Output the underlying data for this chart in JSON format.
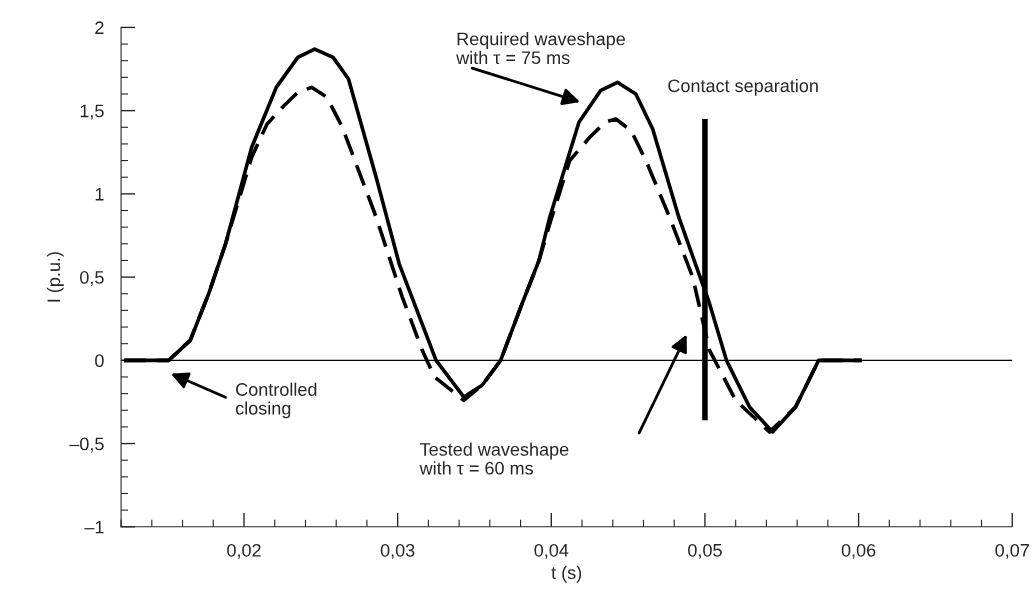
{
  "chart_data": {
    "type": "line",
    "xlabel": "t (s)",
    "ylabel": "I (p.u.)",
    "xlim": [
      0.012,
      0.07
    ],
    "ylim": [
      -1,
      2
    ],
    "xticks": [
      {
        "value": 0.02,
        "label": "0,02"
      },
      {
        "value": 0.03,
        "label": "0,03"
      },
      {
        "value": 0.04,
        "label": "0,04"
      },
      {
        "value": 0.05,
        "label": "0,05"
      },
      {
        "value": 0.06,
        "label": "0,06"
      },
      {
        "value": 0.07,
        "label": "0,07"
      }
    ],
    "yticks": [
      {
        "value": -1,
        "label": "–1"
      },
      {
        "value": -0.5,
        "label": "–0,5"
      },
      {
        "value": 0,
        "label": "0"
      },
      {
        "value": 0.5,
        "label": "0,5"
      },
      {
        "value": 1,
        "label": "1"
      },
      {
        "value": 1.5,
        "label": "1,5"
      },
      {
        "value": 2,
        "label": "2"
      }
    ],
    "grid": false,
    "legend": false,
    "series": [
      {
        "color": "#000000",
        "line_style": "solid",
        "x": [
          0.0122,
          0.0151,
          0.0165,
          0.0177,
          0.0188,
          0.0205,
          0.0221,
          0.0235,
          0.0246,
          0.0258,
          0.0268,
          0.0286,
          0.0301,
          0.0325,
          0.0343,
          0.0355,
          0.0367,
          0.0381,
          0.0392,
          0.0399,
          0.0418,
          0.0432,
          0.0443,
          0.0455,
          0.0466,
          0.0483,
          0.0503,
          0.0514,
          0.0529,
          0.0544,
          0.0559,
          0.0574,
          0.0602
        ],
        "values": [
          0,
          0,
          0.12,
          0.4,
          0.7,
          1.28,
          1.64,
          1.82,
          1.87,
          1.82,
          1.69,
          1.1,
          0.58,
          0,
          -0.22,
          -0.15,
          0,
          0.34,
          0.6,
          0.86,
          1.43,
          1.62,
          1.67,
          1.6,
          1.39,
          0.86,
          0.34,
          0,
          -0.28,
          -0.43,
          -0.28,
          0,
          0
        ]
      },
      {
        "color": "#000000",
        "line_style": "dashed",
        "x": [
          0.0122,
          0.0151,
          0.0165,
          0.0177,
          0.0188,
          0.0205,
          0.0215,
          0.0225,
          0.0235,
          0.0244,
          0.0254,
          0.0264,
          0.0286,
          0.0303,
          0.0316,
          0.0324,
          0.0343,
          0.0355,
          0.0367,
          0.0381,
          0.0392,
          0.0399,
          0.0412,
          0.0425,
          0.0435,
          0.0442,
          0.0452,
          0.0462,
          0.0477,
          0.0492,
          0.0503,
          0.052,
          0.0542,
          0.0559,
          0.0574,
          0.0602
        ],
        "values": [
          0,
          0,
          0.12,
          0.4,
          0.7,
          1.22,
          1.42,
          1.52,
          1.61,
          1.64,
          1.58,
          1.4,
          0.86,
          0.38,
          0.06,
          -0.1,
          -0.24,
          -0.15,
          0,
          0.34,
          0.6,
          0.82,
          1.2,
          1.34,
          1.43,
          1.45,
          1.38,
          1.19,
          0.86,
          0.5,
          0.06,
          -0.24,
          -0.43,
          -0.28,
          0,
          0
        ]
      },
      {
        "color": "#000000",
        "line_style": "solid",
        "x": [
          0.05,
          0.05
        ],
        "values": [
          -0.36,
          1.45
        ]
      }
    ],
    "ref_lines": [
      {
        "axis": "y",
        "value": 0,
        "color": "#000000"
      }
    ],
    "annotations": [
      "Required waveshape\nwith τ = 75 ms",
      "Contact separation",
      "Controlled\nclosing",
      "Tested waveshape\nwith τ = 60 ms"
    ]
  }
}
